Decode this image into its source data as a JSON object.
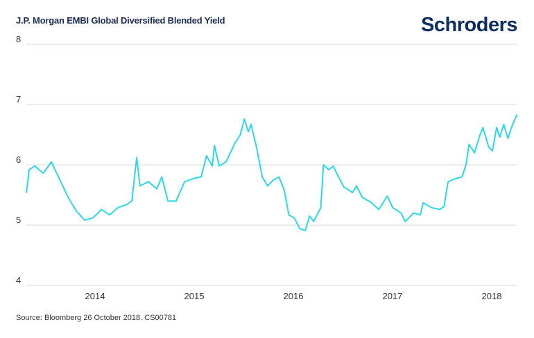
{
  "header": {
    "title": "J.P. Morgan EMBI Global Diversified Blended Yield",
    "logo": "Schroders"
  },
  "footer": {
    "source": "Source: Bloomberg 26 October 2018. CS00781"
  },
  "colors": {
    "line": "#2ad9e8",
    "grid": "#d9d9d9",
    "title": "#1b2a52",
    "logo": "#0d2e63"
  },
  "chart_data": {
    "type": "line",
    "title": "J.P. Morgan EMBI Global Diversified Blended Yield",
    "xlabel": "",
    "ylabel": "",
    "ylim": [
      4,
      8
    ],
    "yticks": [
      "4",
      "5",
      "6",
      "7",
      "8"
    ],
    "xticks": [
      "2014",
      "2015",
      "2016",
      "2017",
      "2018"
    ],
    "grid": true,
    "series": [
      {
        "x": [
          "2013-10-23",
          "2013-11-02",
          "2013-11-23",
          "2013-12-24",
          "2014-01-23",
          "2014-02-23",
          "2014-03-26",
          "2014-04-25",
          "2014-05-26",
          "2014-06-25",
          "2014-07-26",
          "2014-08-25",
          "2014-09-25",
          "2014-10-26",
          "2014-11-15",
          "2014-12-03",
          "2014-12-15",
          "2015-01-15",
          "2015-02-15",
          "2015-03-05",
          "2015-03-28",
          "2015-04-27",
          "2015-05-28",
          "2015-06-27",
          "2015-07-28",
          "2015-08-17",
          "2015-09-07",
          "2015-09-15",
          "2015-10-03",
          "2015-10-28",
          "2015-11-28",
          "2015-12-19",
          "2016-01-03",
          "2016-01-18",
          "2016-01-28",
          "2016-02-18",
          "2016-03-09",
          "2016-03-29",
          "2016-04-19",
          "2016-05-10",
          "2016-05-30",
          "2016-06-15",
          "2016-07-05",
          "2016-07-26",
          "2016-08-15",
          "2016-08-31",
          "2016-09-15",
          "2016-10-11",
          "2016-10-21",
          "2016-11-10",
          "2016-11-26",
          "2016-12-11",
          "2017-01-05",
          "2017-02-05",
          "2017-02-20",
          "2017-03-13",
          "2017-04-13",
          "2017-05-13",
          "2017-06-13",
          "2017-07-03",
          "2017-08-03",
          "2017-08-18",
          "2017-09-18",
          "2017-10-13",
          "2017-10-23",
          "2017-11-23",
          "2017-12-23",
          "2018-01-08",
          "2018-01-23",
          "2018-02-18",
          "2018-03-15",
          "2018-03-30",
          "2018-04-10",
          "2018-04-30",
          "2018-05-21",
          "2018-05-31",
          "2018-06-21",
          "2018-07-05",
          "2018-07-21",
          "2018-08-01",
          "2018-08-16",
          "2018-08-31",
          "2018-09-15",
          "2018-10-03"
        ],
        "values": [
          5.54,
          5.92,
          5.98,
          5.86,
          6.05,
          5.75,
          5.46,
          5.23,
          5.08,
          5.12,
          5.26,
          5.17,
          5.29,
          5.34,
          5.4,
          6.12,
          5.65,
          5.72,
          5.6,
          5.8,
          5.4,
          5.4,
          5.72,
          5.77,
          5.8,
          6.15,
          5.98,
          6.32,
          5.98,
          6.05,
          6.35,
          6.5,
          6.76,
          6.55,
          6.67,
          6.27,
          5.8,
          5.65,
          5.75,
          5.8,
          5.57,
          5.17,
          5.12,
          4.94,
          4.91,
          5.15,
          5.06,
          5.29,
          6.0,
          5.92,
          5.98,
          5.84,
          5.63,
          5.54,
          5.65,
          5.46,
          5.38,
          5.26,
          5.48,
          5.29,
          5.2,
          5.06,
          5.2,
          5.17,
          5.37,
          5.29,
          5.26,
          5.31,
          5.72,
          5.77,
          5.8,
          6.0,
          6.34,
          6.2,
          6.5,
          6.62,
          6.3,
          6.23,
          6.62,
          6.46,
          6.67,
          6.44,
          6.64,
          6.83
        ]
      }
    ]
  }
}
